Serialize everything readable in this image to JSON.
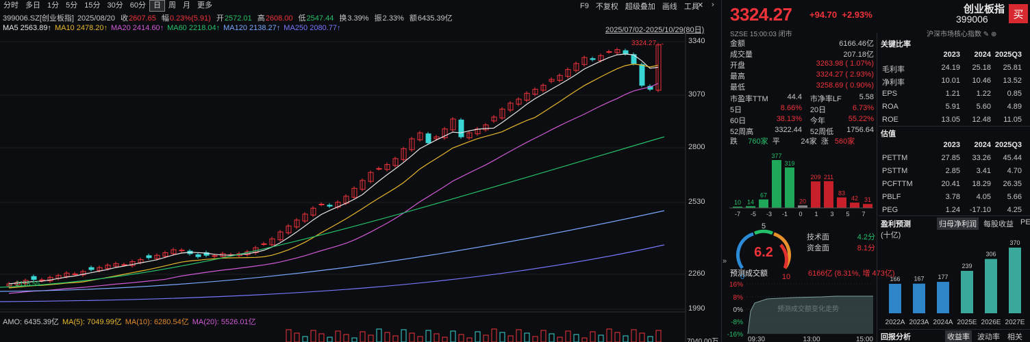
{
  "toolbar": {
    "tabs": [
      "分时",
      "多日",
      "1分",
      "5分",
      "15分",
      "30分",
      "60分",
      "日",
      "周",
      "月",
      "更多"
    ],
    "active": "日",
    "tools": [
      "F9",
      "不复权",
      "超级叠加",
      "画线",
      "工具"
    ]
  },
  "info": {
    "code": "399006.SZ[创业板指]",
    "date": "2025/08/20",
    "close_label": "收",
    "close": "2607.65",
    "amp_label": "幅",
    "amp": "0.23%(5.91)",
    "open_label": "开",
    "open": "2572.01",
    "high_label": "高",
    "high": "2608.00",
    "low_label": "低",
    "low": "2547.44",
    "turn_label": "换",
    "turn": "3.39%",
    "zhen_label": "振",
    "zhen": "2.33%",
    "amt_label": "额",
    "amt": "6435.39亿"
  },
  "ma": {
    "ma5": "MA5 2563.89↑",
    "ma10": "MA10 2478.20↑",
    "ma20": "MA20 2414.60↑",
    "ma60": "MA60 2218.04↑",
    "ma120": "MA120 2138.27↑",
    "ma250": "MA250 2080.77↑"
  },
  "range": "2025/07/02-2025/10/29(80日)",
  "yaxis": [
    "3340",
    "3070",
    "2800",
    "2530",
    "2260",
    "1990"
  ],
  "vol_axis": "7040.00万",
  "max_label": "3324.27",
  "min_label": "2118.55",
  "vol": {
    "amo": "AMO: 6435.39亿",
    "ma5": "MA(5): 7049.99亿",
    "ma10": "MA(10): 6280.54亿",
    "ma20": "MA(20): 5526.01亿"
  },
  "quote": {
    "price": "3324.27",
    "chg": "+94.70",
    "pct": "+2.93%",
    "name": "创业板指",
    "code": "399006",
    "exch": "SZSE  15:00:03  闭市",
    "mkt": "沪深市场核心指数"
  },
  "stats": [
    {
      "k": "金额",
      "v": "6166.46亿",
      "c": "w"
    },
    {
      "k": "成交量",
      "v": "207.18亿",
      "c": "w"
    },
    {
      "k": "开盘",
      "v": "3263.98 ( 1.07%)",
      "c": "r"
    },
    {
      "k": "最高",
      "v": "3324.27 ( 2.93%)",
      "c": "r"
    },
    {
      "k": "最低",
      "v": "3258.69 ( 0.90%)",
      "c": "r"
    }
  ],
  "val": [
    {
      "k1": "市盈率TTM",
      "v1": "44.4",
      "k2": "市净率LF",
      "v2": "5.58",
      "c1": "w",
      "c2": "w"
    },
    {
      "k1": "5日",
      "v1": "8.66%",
      "k2": "20日",
      "v2": "6.73%",
      "c1": "r",
      "c2": "r"
    },
    {
      "k1": "60日",
      "v1": "38.13%",
      "k2": "今年",
      "v2": "55.22%",
      "c1": "r",
      "c2": "r"
    },
    {
      "k1": "52周高",
      "v1": "3322.44",
      "k2": "52周低",
      "v2": "1756.64",
      "c1": "w",
      "c2": "w"
    }
  ],
  "breadth": {
    "down_label": "跌",
    "down": "760家",
    "flat_label": "平",
    "flat": "24家",
    "up_label": "涨",
    "up": "560家"
  },
  "dist": {
    "values": [
      10,
      14,
      67,
      377,
      319,
      20,
      209,
      211,
      83,
      42,
      31
    ],
    "ticks": [
      "-7",
      "-5",
      "-3",
      "-1",
      "0",
      "1",
      "3",
      "5",
      "7"
    ]
  },
  "gauge": {
    "score": "6.2",
    "min": "0",
    "mid": "5",
    "max": "10",
    "tech_label": "技术面",
    "tech": "4.2分",
    "fund_label": "资金面",
    "fund": "8.1分"
  },
  "forecast": {
    "title": "预测成交额",
    "value": "6166亿 (8.31%, 增 473亿)",
    "ylabels": [
      "16%",
      "8%",
      "0%",
      "-8%",
      "-16%"
    ],
    "xlabels": [
      "09:30",
      "13:00",
      "15:00"
    ],
    "watermark": "预测成交额变化走势"
  },
  "key": {
    "title": "关键比率",
    "years": [
      "2023",
      "2024",
      "2025Q3"
    ],
    "rows": [
      {
        "k": "毛利率",
        "v": [
          "24.19",
          "25.18",
          "25.81"
        ]
      },
      {
        "k": "净利率",
        "v": [
          "10.01",
          "10.46",
          "13.52"
        ]
      },
      {
        "k": "EPS",
        "v": [
          "1.21",
          "1.22",
          "0.85"
        ]
      },
      {
        "k": "ROA",
        "v": [
          "5.91",
          "5.60",
          "4.89"
        ]
      },
      {
        "k": "ROE",
        "v": [
          "13.05",
          "12.48",
          "11.05"
        ]
      }
    ]
  },
  "valuation": {
    "title": "估值",
    "years": [
      "2023",
      "2024",
      "2025Q3"
    ],
    "rows": [
      {
        "k": "PETTM",
        "v": [
          "27.85",
          "33.26",
          "45.44"
        ]
      },
      {
        "k": "PSTTM",
        "v": [
          "2.85",
          "3.41",
          "4.70"
        ]
      },
      {
        "k": "PCFTTM",
        "v": [
          "20.41",
          "18.29",
          "26.35"
        ]
      },
      {
        "k": "PBLF",
        "v": [
          "3.78",
          "4.05",
          "5.66"
        ]
      },
      {
        "k": "PEG",
        "v": [
          "1.24",
          "-17.10",
          "4.25"
        ]
      }
    ]
  },
  "profit": {
    "title": "盈利预测",
    "tabs": [
      "归母净利润",
      "每股收益",
      "PE"
    ],
    "unit": "(十亿)",
    "values": [
      166,
      167,
      177,
      239,
      306,
      370
    ],
    "labels": [
      "2022A",
      "2023A",
      "2024A",
      "2025E",
      "2026E",
      "2027E"
    ]
  },
  "back": {
    "title": "回报分析",
    "tabs": [
      "收益率",
      "波动率",
      "相关性"
    ]
  },
  "chart_data": [
    {
      "type": "bar",
      "title": "",
      "categories": [
        "-7",
        "-6",
        "-5",
        "-4",
        "-3",
        "-1",
        "0",
        "1",
        "3",
        "5",
        "7"
      ],
      "values": [
        10,
        14,
        67,
        377,
        319,
        20,
        209,
        211,
        83,
        42,
        31
      ]
    },
    {
      "type": "bar",
      "title": "盈利预测",
      "categories": [
        "2022A",
        "2023A",
        "2024A",
        "2025E",
        "2026E",
        "2027E"
      ],
      "values": [
        166,
        167,
        177,
        239,
        306,
        370
      ]
    }
  ]
}
